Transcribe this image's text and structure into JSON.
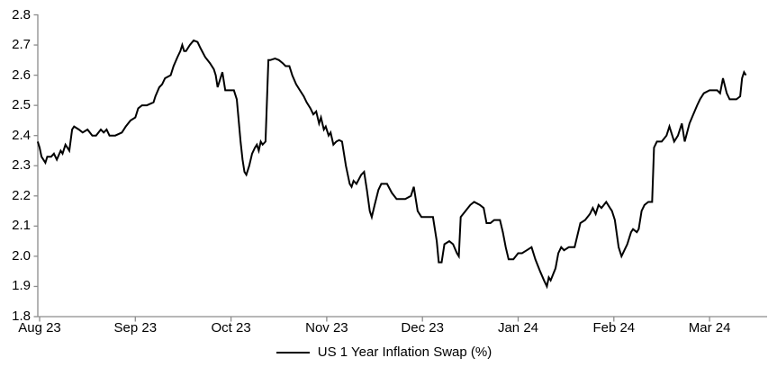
{
  "colors": {
    "background": "#ffffff",
    "axis": "#8C8C8C",
    "text": "#000000",
    "series": "#000000"
  },
  "chart_data": {
    "type": "line",
    "title": "",
    "xlabel": "",
    "ylabel": "",
    "grid": false,
    "legend_position": "bottom-center",
    "legend_label": "US 1 Year Inflation Swap (%)",
    "x_axis": {
      "unit": "month (0 = Aug 23 tick, 7 = Mar 24 tick)",
      "tick_labels": [
        "Aug 23",
        "Sep 23",
        "Oct 23",
        "Nov 23",
        "Dec 23",
        "Jan 24",
        "Feb 24",
        "Mar 24"
      ],
      "tick_positions": [
        0,
        1,
        2,
        3,
        4,
        5,
        6,
        7
      ]
    },
    "y_axis": {
      "min": 1.8,
      "max": 2.8,
      "tick_values": [
        2.8,
        2.7,
        2.6,
        2.5,
        2.4,
        2.3,
        2.2,
        2.1,
        2.0,
        1.9,
        1.8
      ],
      "tick_labels": [
        "2.8",
        "2.7",
        "2.6",
        "2.5",
        "2.4",
        "2.3",
        "2.2",
        "2.1",
        "2.0",
        "1.9",
        "1.8"
      ]
    },
    "series": [
      {
        "name": "US 1 Year Inflation Swap (%)",
        "color": "#000000",
        "points": [
          [
            -0.02,
            2.38
          ],
          [
            0,
            2.36
          ],
          [
            0.02,
            2.33
          ],
          [
            0.06,
            2.31
          ],
          [
            0.08,
            2.33
          ],
          [
            0.12,
            2.33
          ],
          [
            0.15,
            2.34
          ],
          [
            0.18,
            2.32
          ],
          [
            0.22,
            2.35
          ],
          [
            0.24,
            2.34
          ],
          [
            0.27,
            2.37
          ],
          [
            0.31,
            2.35
          ],
          [
            0.34,
            2.42
          ],
          [
            0.36,
            2.43
          ],
          [
            0.41,
            2.42
          ],
          [
            0.45,
            2.41
          ],
          [
            0.5,
            2.42
          ],
          [
            0.55,
            2.4
          ],
          [
            0.59,
            2.4
          ],
          [
            0.64,
            2.42
          ],
          [
            0.67,
            2.41
          ],
          [
            0.7,
            2.42
          ],
          [
            0.73,
            2.4
          ],
          [
            0.79,
            2.4
          ],
          [
            0.86,
            2.41
          ],
          [
            0.9,
            2.43
          ],
          [
            0.95,
            2.45
          ],
          [
            1,
            2.46
          ],
          [
            1.03,
            2.49
          ],
          [
            1.07,
            2.5
          ],
          [
            1.12,
            2.5
          ],
          [
            1.19,
            2.51
          ],
          [
            1.21,
            2.53
          ],
          [
            1.25,
            2.56
          ],
          [
            1.28,
            2.57
          ],
          [
            1.31,
            2.59
          ],
          [
            1.37,
            2.6
          ],
          [
            1.4,
            2.63
          ],
          [
            1.44,
            2.66
          ],
          [
            1.47,
            2.68
          ],
          [
            1.49,
            2.7
          ],
          [
            1.51,
            2.68
          ],
          [
            1.53,
            2.68
          ],
          [
            1.57,
            2.7
          ],
          [
            1.61,
            2.715
          ],
          [
            1.65,
            2.71
          ],
          [
            1.68,
            2.69
          ],
          [
            1.73,
            2.66
          ],
          [
            1.78,
            2.64
          ],
          [
            1.82,
            2.62
          ],
          [
            1.84,
            2.6
          ],
          [
            1.86,
            2.56
          ],
          [
            1.91,
            2.61
          ],
          [
            1.94,
            2.55
          ],
          [
            1.97,
            2.55
          ],
          [
            1.99,
            2.55
          ],
          [
            2.03,
            2.55
          ],
          [
            2.06,
            2.52
          ],
          [
            2.08,
            2.45
          ],
          [
            2.1,
            2.38
          ],
          [
            2.12,
            2.32
          ],
          [
            2.14,
            2.28
          ],
          [
            2.16,
            2.27
          ],
          [
            2.19,
            2.3
          ],
          [
            2.22,
            2.34
          ],
          [
            2.25,
            2.36
          ],
          [
            2.27,
            2.37
          ],
          [
            2.29,
            2.35
          ],
          [
            2.31,
            2.38
          ],
          [
            2.33,
            2.37
          ],
          [
            2.36,
            2.38
          ],
          [
            2.39,
            2.65
          ],
          [
            2.41,
            2.65
          ],
          [
            2.46,
            2.655
          ],
          [
            2.5,
            2.65
          ],
          [
            2.54,
            2.64
          ],
          [
            2.57,
            2.63
          ],
          [
            2.61,
            2.63
          ],
          [
            2.64,
            2.6
          ],
          [
            2.68,
            2.57
          ],
          [
            2.72,
            2.55
          ],
          [
            2.76,
            2.53
          ],
          [
            2.79,
            2.51
          ],
          [
            2.83,
            2.49
          ],
          [
            2.86,
            2.47
          ],
          [
            2.89,
            2.48
          ],
          [
            2.92,
            2.44
          ],
          [
            2.94,
            2.46
          ],
          [
            2.97,
            2.42
          ],
          [
            2.99,
            2.43
          ],
          [
            3.02,
            2.4
          ],
          [
            3.04,
            2.41
          ],
          [
            3.07,
            2.37
          ],
          [
            3.1,
            2.38
          ],
          [
            3.13,
            2.385
          ],
          [
            3.16,
            2.38
          ],
          [
            3.2,
            2.3
          ],
          [
            3.24,
            2.24
          ],
          [
            3.26,
            2.23
          ],
          [
            3.28,
            2.25
          ],
          [
            3.31,
            2.24
          ],
          [
            3.36,
            2.27
          ],
          [
            3.39,
            2.28
          ],
          [
            3.42,
            2.22
          ],
          [
            3.45,
            2.15
          ],
          [
            3.47,
            2.13
          ],
          [
            3.5,
            2.17
          ],
          [
            3.54,
            2.22
          ],
          [
            3.57,
            2.24
          ],
          [
            3.63,
            2.24
          ],
          [
            3.68,
            2.21
          ],
          [
            3.73,
            2.19
          ],
          [
            3.78,
            2.19
          ],
          [
            3.82,
            2.19
          ],
          [
            3.88,
            2.2
          ],
          [
            3.91,
            2.23
          ],
          [
            3.95,
            2.15
          ],
          [
            3.99,
            2.13
          ],
          [
            4.04,
            2.13
          ],
          [
            4.08,
            2.13
          ],
          [
            4.11,
            2.13
          ],
          [
            4.15,
            2.05
          ],
          [
            4.17,
            1.98
          ],
          [
            4.2,
            1.98
          ],
          [
            4.23,
            2.04
          ],
          [
            4.28,
            2.05
          ],
          [
            4.32,
            2.04
          ],
          [
            4.36,
            2.01
          ],
          [
            4.38,
            2
          ],
          [
            4.4,
            2.13
          ],
          [
            4.45,
            2.15
          ],
          [
            4.5,
            2.17
          ],
          [
            4.54,
            2.18
          ],
          [
            4.6,
            2.17
          ],
          [
            4.64,
            2.16
          ],
          [
            4.67,
            2.11
          ],
          [
            4.71,
            2.11
          ],
          [
            4.75,
            2.12
          ],
          [
            4.81,
            2.12
          ],
          [
            4.84,
            2.08
          ],
          [
            4.87,
            2.03
          ],
          [
            4.9,
            1.99
          ],
          [
            4.95,
            1.99
          ],
          [
            5,
            2.01
          ],
          [
            5.04,
            2.01
          ],
          [
            5.09,
            2.02
          ],
          [
            5.14,
            2.03
          ],
          [
            5.18,
            1.99
          ],
          [
            5.23,
            1.95
          ],
          [
            5.27,
            1.92
          ],
          [
            5.3,
            1.9
          ],
          [
            5.32,
            1.93
          ],
          [
            5.34,
            1.92
          ],
          [
            5.39,
            1.96
          ],
          [
            5.42,
            2.01
          ],
          [
            5.45,
            2.03
          ],
          [
            5.48,
            2.02
          ],
          [
            5.53,
            2.03
          ],
          [
            5.59,
            2.03
          ],
          [
            5.62,
            2.07
          ],
          [
            5.65,
            2.11
          ],
          [
            5.7,
            2.12
          ],
          [
            5.75,
            2.14
          ],
          [
            5.78,
            2.16
          ],
          [
            5.81,
            2.14
          ],
          [
            5.84,
            2.17
          ],
          [
            5.87,
            2.16
          ],
          [
            5.92,
            2.18
          ],
          [
            5.96,
            2.16
          ],
          [
            5.98,
            2.15
          ],
          [
            6.01,
            2.12
          ],
          [
            6.05,
            2.03
          ],
          [
            6.08,
            2
          ],
          [
            6.11,
            2.02
          ],
          [
            6.14,
            2.04
          ],
          [
            6.18,
            2.08
          ],
          [
            6.2,
            2.09
          ],
          [
            6.24,
            2.08
          ],
          [
            6.26,
            2.09
          ],
          [
            6.29,
            2.15
          ],
          [
            6.32,
            2.17
          ],
          [
            6.36,
            2.18
          ],
          [
            6.4,
            2.18
          ],
          [
            6.42,
            2.36
          ],
          [
            6.45,
            2.38
          ],
          [
            6.5,
            2.38
          ],
          [
            6.55,
            2.4
          ],
          [
            6.58,
            2.43
          ],
          [
            6.63,
            2.38
          ],
          [
            6.67,
            2.4
          ],
          [
            6.71,
            2.44
          ],
          [
            6.74,
            2.38
          ],
          [
            6.79,
            2.44
          ],
          [
            6.83,
            2.47
          ],
          [
            6.87,
            2.5
          ],
          [
            6.9,
            2.52
          ],
          [
            6.94,
            2.54
          ],
          [
            7,
            2.55
          ],
          [
            7.05,
            2.55
          ],
          [
            7.08,
            2.55
          ],
          [
            7.11,
            2.54
          ],
          [
            7.14,
            2.59
          ],
          [
            7.18,
            2.54
          ],
          [
            7.21,
            2.52
          ],
          [
            7.25,
            2.52
          ],
          [
            7.28,
            2.52
          ],
          [
            7.32,
            2.53
          ],
          [
            7.34,
            2.59
          ],
          [
            7.36,
            2.61
          ],
          [
            7.38,
            2.6
          ]
        ]
      }
    ]
  }
}
